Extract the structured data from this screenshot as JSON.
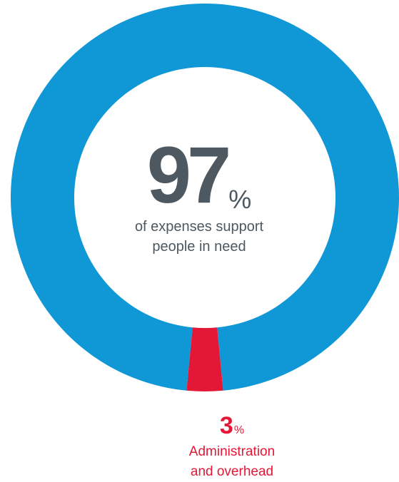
{
  "chart_data": {
    "type": "pie",
    "title": "",
    "slices": [
      {
        "value": 97,
        "color": "#1097d6"
      },
      {
        "value": 3,
        "color": "#e31837"
      }
    ],
    "center_label": {
      "number": "97",
      "unit": "%",
      "caption_line1": "of expenses support",
      "caption_line2": "people in need"
    },
    "slice_label": {
      "number": "3",
      "unit": "%",
      "caption_line1": "Administration",
      "caption_line2": "and overhead"
    }
  }
}
